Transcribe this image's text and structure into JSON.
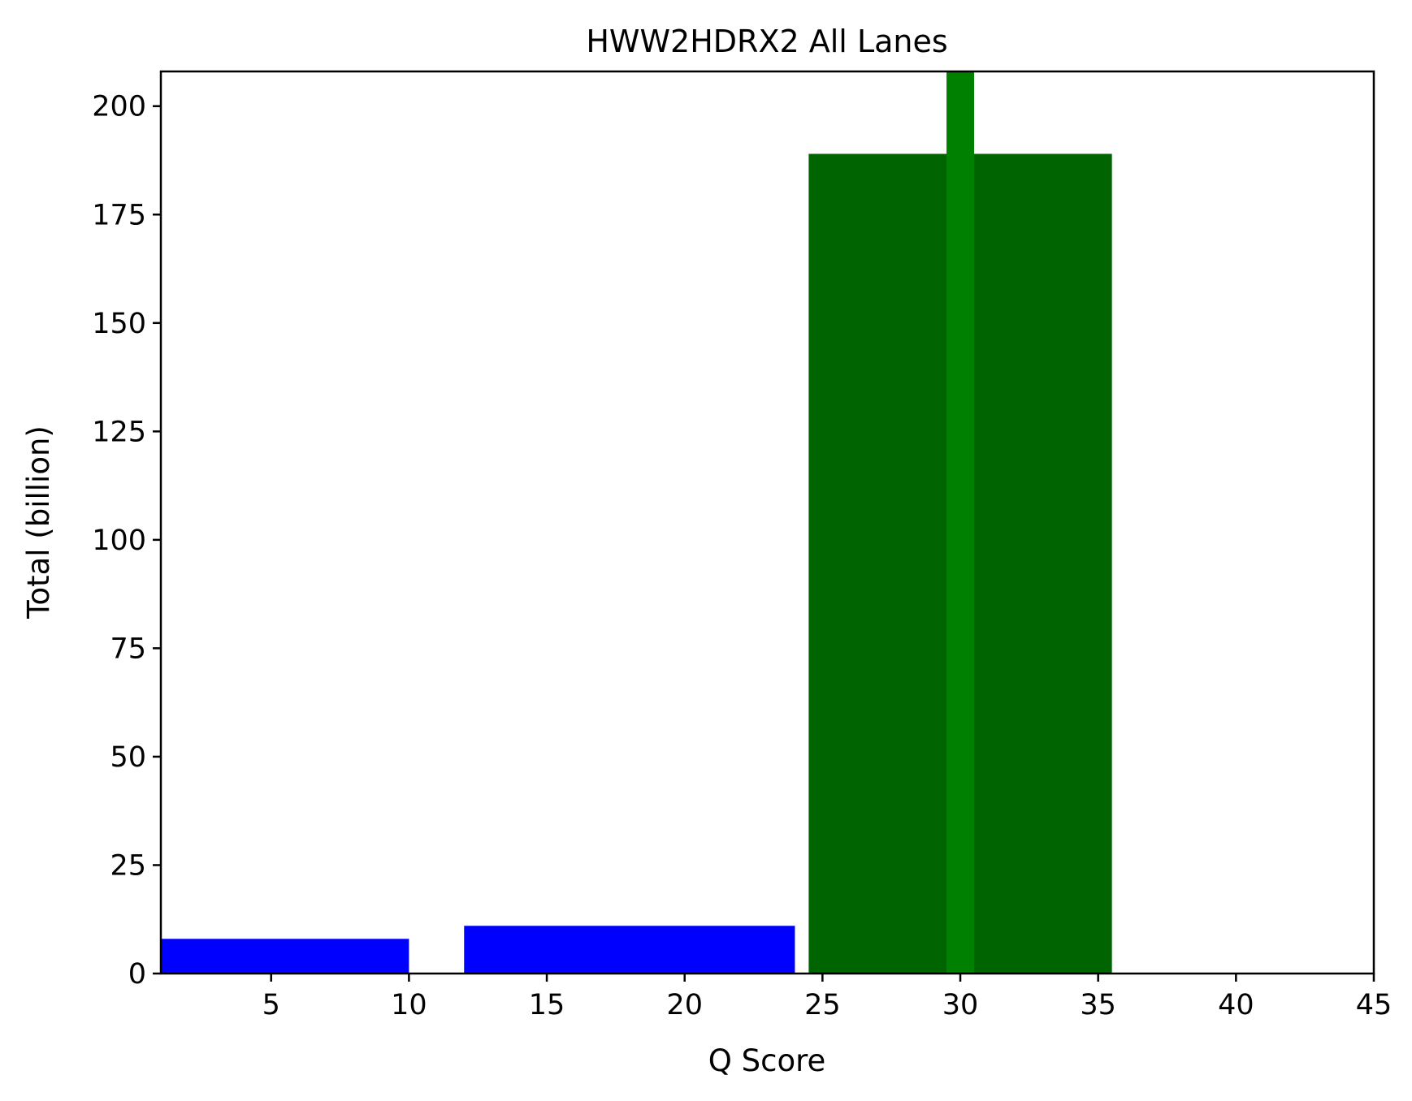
{
  "chart_data": {
    "type": "bar",
    "title": "HWW2HDRX2 All Lanes",
    "xlabel": "Q Score",
    "ylabel": "Total (billion)",
    "xlim": [
      1,
      45
    ],
    "ylim": [
      0,
      208
    ],
    "xticks": [
      5,
      10,
      15,
      20,
      25,
      30,
      35,
      40,
      45
    ],
    "yticks": [
      0,
      25,
      50,
      75,
      100,
      125,
      150,
      175,
      200
    ],
    "grid": false,
    "bars": [
      {
        "x_start": 1,
        "x_end": 10,
        "value": 8,
        "color": "#0000ff"
      },
      {
        "x_start": 12,
        "x_end": 24,
        "value": 11,
        "color": "#0000ff"
      },
      {
        "x_start": 24.5,
        "x_end": 35.5,
        "value": 189,
        "color": "#006400"
      },
      {
        "x_start": 29.5,
        "x_end": 30.5,
        "value": 208,
        "color": "#008000"
      }
    ]
  }
}
